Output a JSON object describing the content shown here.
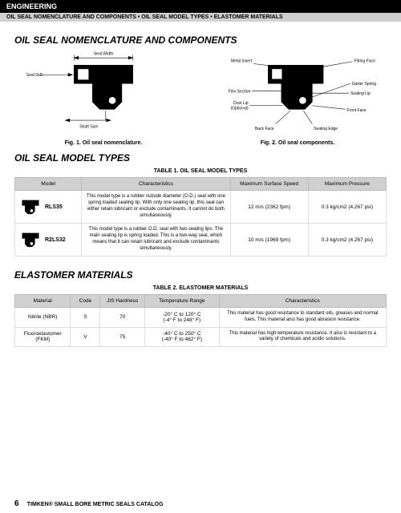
{
  "header": {
    "category": "ENGINEERING",
    "subtitle": "OIL SEAL NOMENCLATURE AND COMPONENTS • OIL SEAL MODEL TYPES • ELASTOMER MATERIALS"
  },
  "section1": {
    "title": "OIL SEAL NOMENCLATURE AND COMPONENTS",
    "fig1": {
      "caption": "Fig. 1. Oil seal nomenclature.",
      "labels": {
        "sealOD": "Seal O.D.",
        "sealWidth": "Seal Width",
        "shaftSize": "Shaft Size"
      }
    },
    "fig2": {
      "caption": "Fig. 2. Oil seal components.",
      "labels": {
        "metalInsert": "Metal Insert",
        "flexSection": "Flex Section",
        "dustLip": "Dust Lip\n(Optional)",
        "backFace": "Back Face",
        "sealingEdge": "Sealing Edge",
        "frontFace": "Front Face",
        "sealingLip": "Sealing Lip",
        "garterSpring": "Garter Spring",
        "fittingFace": "Fitting Face"
      }
    }
  },
  "section2": {
    "title": "OIL SEAL MODEL TYPES",
    "tableCaption": "TABLE 1. OIL SEAL MODEL TYPES",
    "cols": {
      "c1": "Model",
      "c2": "Characteristics",
      "c3": "Maximum Surface Speed",
      "c4": "Maximum Pressure"
    },
    "rows": [
      {
        "code": "RLS35",
        "char": "This model type is a rubber outside diameter (O.D.) seal with one spring loaded sealing lip. With only one sealing lip, this seal can either retain lubricant or exclude contaminants. It cannot do both simultaneously.",
        "speed": "12 m/s (2362 fpm)",
        "pressure": "0.3 kg/cm2 (4.267 psi)"
      },
      {
        "code": "R2LS32",
        "char": "This model type is a rubber O.D. seal with two sealing lips. The main sealing lip is spring loaded. This is a two-way seal, which means that it can retain lubricant and exclude contaminants simultaneously.",
        "speed": "10 m/s (1969 fpm)",
        "pressure": "0.3 kg/cm2 (4.267 psi)"
      }
    ]
  },
  "section3": {
    "title": "ELASTOMER MATERIALS",
    "tableCaption": "TABLE 2. ELASTOMER MATERIALS",
    "cols": {
      "c1": "Material",
      "c2": "Code",
      "c3": "JIS Hardness",
      "c4": "Temperature Range",
      "c5": "Characteristics"
    },
    "rows": [
      {
        "mat": "Nitrile (NBR)",
        "code": "S",
        "hard": "70",
        "temp": "-20° C to 120° C\n(-4° F to 248° F)",
        "char": "This material has good resistance to standard oils, greases and normal fuels. This material also has good abrasion resistance."
      },
      {
        "mat": "Fluoroelastomer (FKM)",
        "code": "V",
        "hard": "75",
        "temp": "-40° C to 250° C\n(-40° F to 482° F)",
        "char": "This material has high-temperature resistance. It also is resistant to a variety of chemicals and acidic solutions."
      }
    ]
  },
  "footer": {
    "page": "6",
    "catalog": "TIMKEN® SMALL BORE METRIC SEALS CATALOG"
  }
}
